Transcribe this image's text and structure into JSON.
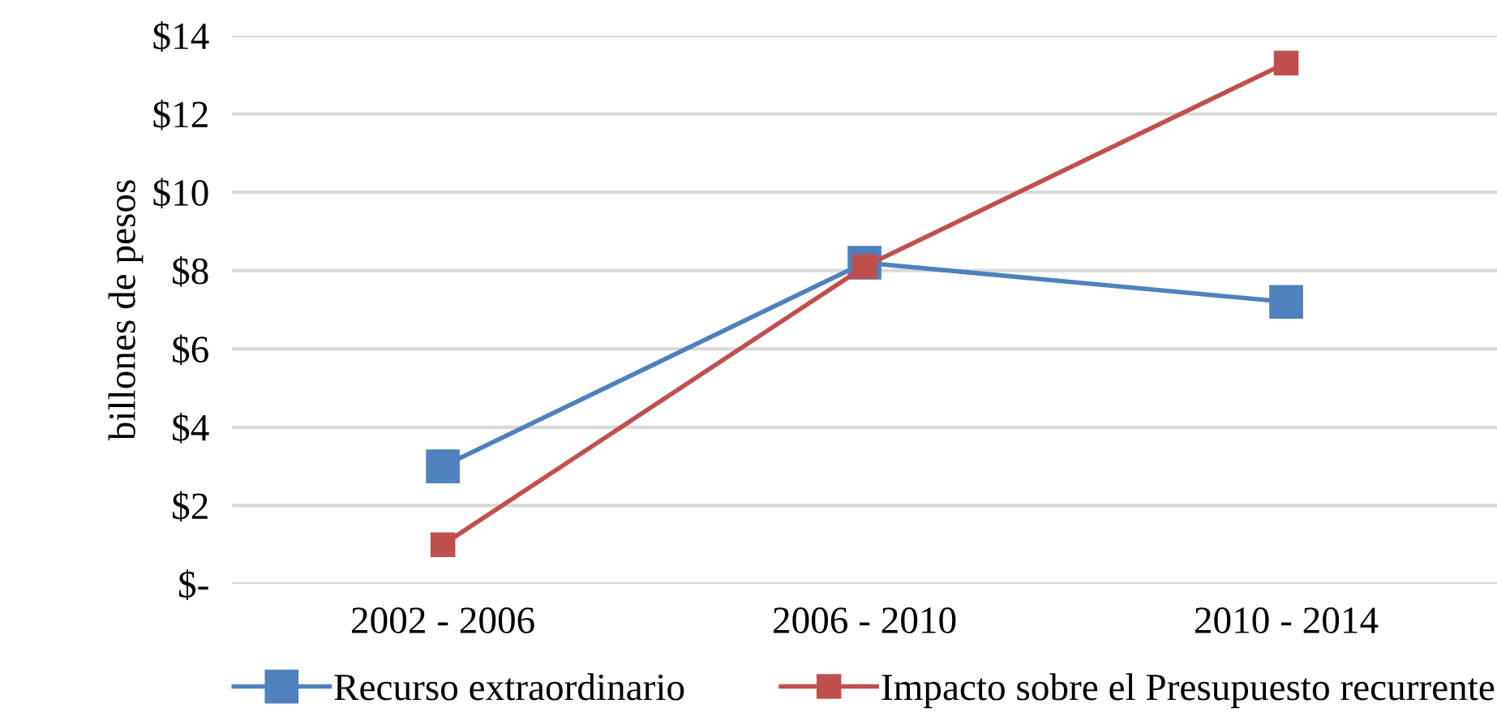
{
  "chart_data": {
    "type": "line",
    "ylabel": "billones de pesos",
    "categories": [
      "2002 - 2006",
      "2006 - 2010",
      "2010 - 2014"
    ],
    "series": [
      {
        "name": "Recurso extraordinario",
        "color": "#4f81bd",
        "values": [
          3.0,
          8.2,
          7.2
        ]
      },
      {
        "name": "Impacto sobre el Presupuesto recurrente",
        "color": "#c0504d",
        "values": [
          1.0,
          8.1,
          13.3
        ]
      }
    ],
    "ylim": [
      0,
      14
    ],
    "yticks": [
      {
        "value": 0,
        "label": "$-"
      },
      {
        "value": 2,
        "label": "$2"
      },
      {
        "value": 4,
        "label": "$4"
      },
      {
        "value": 6,
        "label": "$6"
      },
      {
        "value": 8,
        "label": "$8"
      },
      {
        "value": 10,
        "label": "$10"
      },
      {
        "value": 12,
        "label": "$12"
      },
      {
        "value": 14,
        "label": "$14"
      }
    ],
    "grid": "y",
    "legend": "bottom",
    "marker": "square",
    "line_style": "solid"
  }
}
